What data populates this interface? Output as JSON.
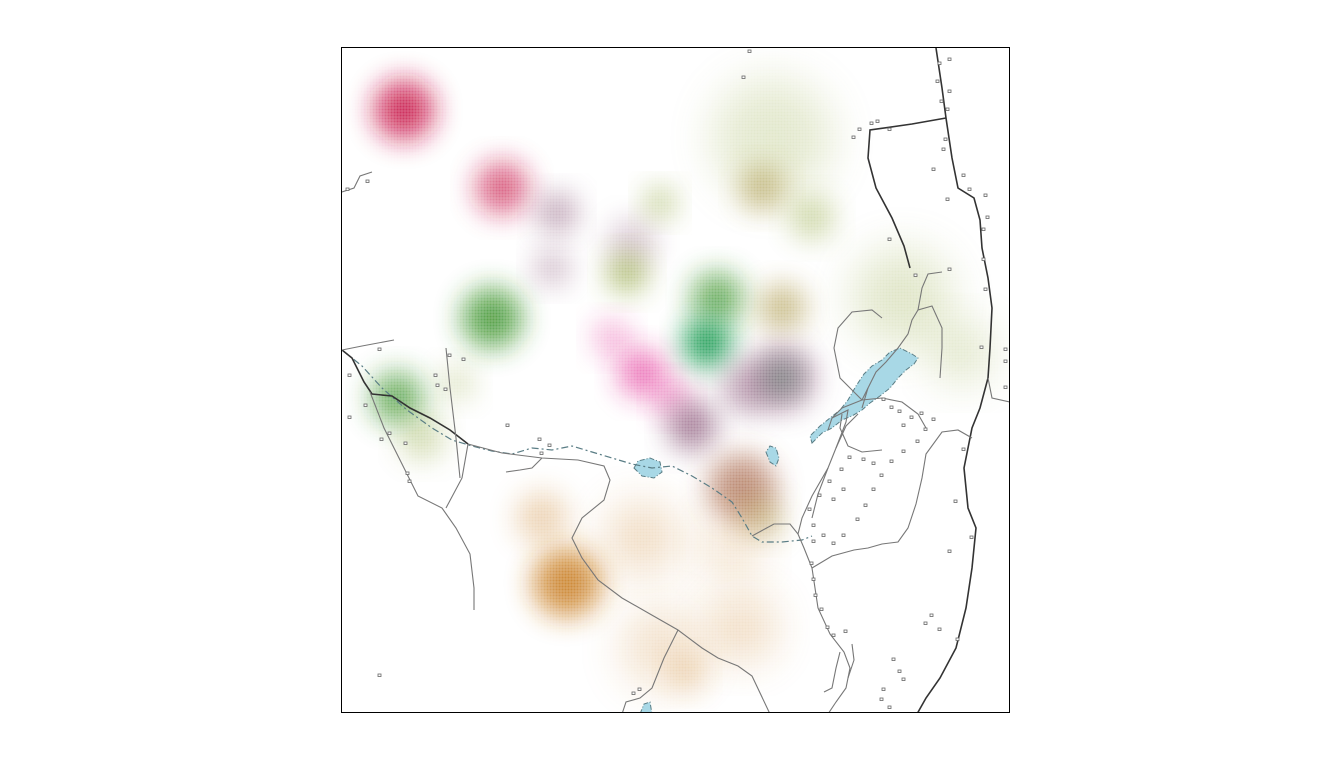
{
  "map": {
    "style": {
      "background": "#ffffff",
      "frame_color": "#000000",
      "water_color": "#a8d8e6",
      "road_major_color": "#333333",
      "road_minor_color": "#777777",
      "building_color": "#666666",
      "stream_color": "#5a7d85"
    },
    "density_layers": [
      {
        "category": "crimson",
        "color": "#c8184a"
      },
      {
        "category": "magenta",
        "color": "#e0208e"
      },
      {
        "category": "plum",
        "color": "#8b5a7a"
      },
      {
        "category": "green",
        "color": "#2e8b1a"
      },
      {
        "category": "emerald",
        "color": "#009040"
      },
      {
        "category": "olive",
        "color": "#8aa030"
      },
      {
        "category": "khaki",
        "color": "#a08a30"
      },
      {
        "category": "orange",
        "color": "#c77a1a"
      },
      {
        "category": "rust",
        "color": "#a05a3a"
      }
    ]
  }
}
